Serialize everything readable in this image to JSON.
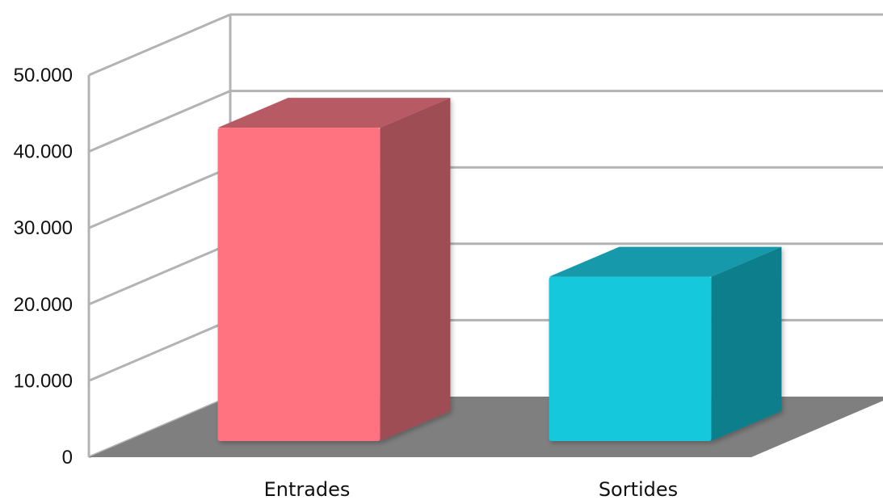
{
  "chart_data": {
    "type": "bar",
    "categories": [
      "Entrades",
      "Sortides"
    ],
    "values": [
      41000,
      21500
    ],
    "ylim": [
      0,
      50000
    ],
    "yticks": [
      "0",
      "10.000",
      "20.000",
      "30.000",
      "40.000",
      "50.000"
    ],
    "grid": true,
    "legend": "none",
    "colors": {
      "bar_front": [
        "#ff7380",
        "#17c8dc"
      ],
      "bar_side": [
        "#9f4e55",
        "#0f7f8c"
      ],
      "bar_top": [
        "#b85a63",
        "#1499aa"
      ],
      "floor": "#7f7f7f",
      "grid": "#b3b3b3"
    }
  }
}
